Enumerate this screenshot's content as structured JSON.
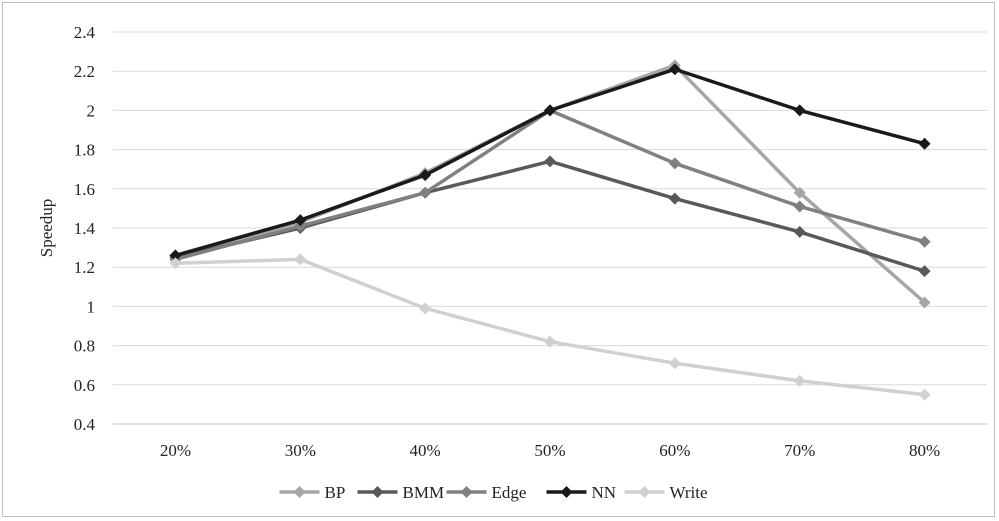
{
  "chart_data": {
    "type": "line",
    "categories": [
      "20%",
      "30%",
      "40%",
      "50%",
      "60%",
      "70%",
      "80%"
    ],
    "ylabel": "Speedup",
    "xlabel": "",
    "ylim": [
      0.4,
      2.4
    ],
    "yticks": [
      0.4,
      0.6,
      0.8,
      1,
      1.2,
      1.4,
      1.6,
      1.8,
      2,
      2.2,
      2.4
    ],
    "ytick_labels": [
      "0.4",
      "0.6",
      "0.8",
      "1",
      "1.2",
      "1.4",
      "1.6",
      "1.8",
      "2",
      "2.2",
      "2.4"
    ],
    "grid": true,
    "legend_position": "bottom",
    "series": [
      {
        "name": "BP",
        "color": "#a6a6a6",
        "values": [
          1.25,
          1.43,
          1.68,
          2.0,
          2.23,
          1.58,
          1.02
        ]
      },
      {
        "name": "BMM",
        "color": "#595959",
        "values": [
          1.25,
          1.4,
          1.58,
          1.74,
          1.55,
          1.38,
          1.18
        ]
      },
      {
        "name": "Edge",
        "color": "#808080",
        "values": [
          1.24,
          1.41,
          1.58,
          2.0,
          1.73,
          1.51,
          1.33
        ]
      },
      {
        "name": "NN",
        "color": "#1a1a1a",
        "values": [
          1.26,
          1.44,
          1.67,
          2.0,
          2.21,
          2.0,
          1.83
        ]
      },
      {
        "name": "Write",
        "color": "#d0d0d0",
        "values": [
          1.22,
          1.24,
          0.99,
          0.82,
          0.71,
          0.62,
          0.55
        ]
      }
    ]
  }
}
